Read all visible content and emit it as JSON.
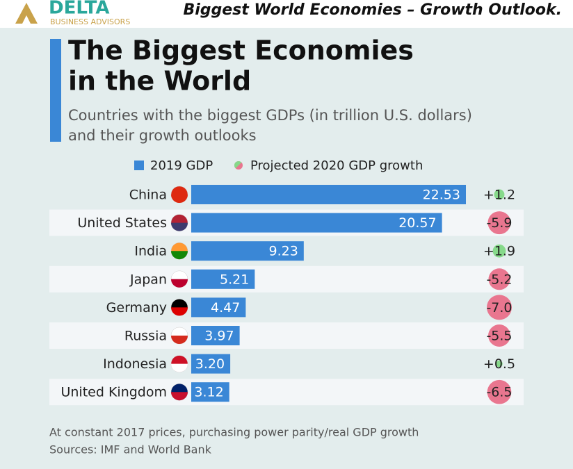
{
  "header": {
    "brand": "DELTA",
    "brand_sub": "BUSINESS ADVISORS",
    "banner": "Biggest World Economies – Growth Outlook."
  },
  "chart_data": {
    "type": "bar",
    "title": [
      "The Biggest Economies",
      "in the World"
    ],
    "subtitle": [
      "Countries with the biggest GDPs (in trillion U.S. dollars)",
      "and their growth outlooks"
    ],
    "categories": [
      "China",
      "United States",
      "India",
      "Japan",
      "Germany",
      "Russia",
      "Indonesia",
      "United Kingdom"
    ],
    "series": [
      {
        "name": "2019 GDP",
        "color": "#3a87d6",
        "values": [
          22.53,
          20.57,
          9.23,
          5.21,
          4.47,
          3.97,
          3.2,
          3.12
        ],
        "value_labels": [
          "22.53",
          "20.57",
          "9.23",
          "5.21",
          "4.47",
          "3.97",
          "3.20",
          "3.12"
        ]
      },
      {
        "name": "Projected 2020 GDP growth",
        "type": "bubble",
        "color_positive": "#86d98a",
        "color_negative": "#e9768f",
        "values": [
          1.2,
          -5.9,
          1.9,
          -5.2,
          -7.0,
          -5.5,
          0.5,
          -6.5
        ],
        "value_labels": [
          "+1.2",
          "-5.9",
          "+1.9",
          "-5.2",
          "-7.0",
          "-5.5",
          "+0.5",
          "-6.5"
        ]
      }
    ],
    "notes": [
      "At constant 2017 prices, purchasing power parity/real GDP growth",
      "Sources: IMF and World Bank"
    ]
  }
}
